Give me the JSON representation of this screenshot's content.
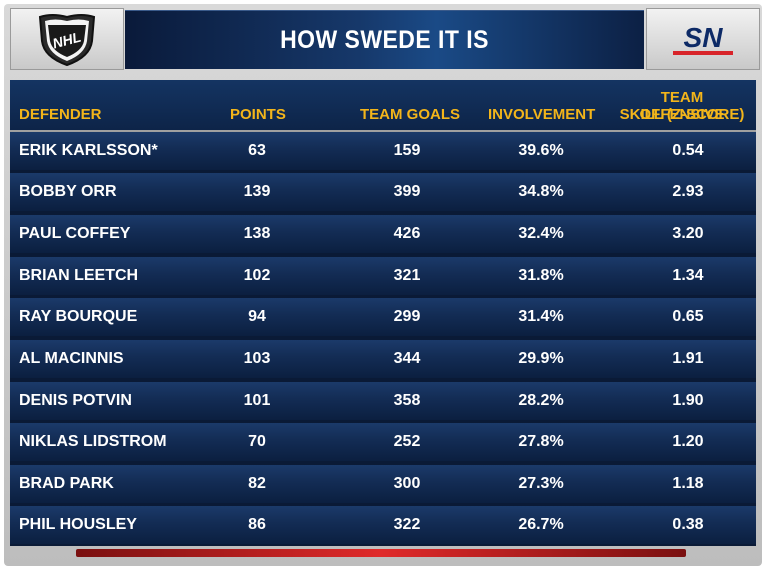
{
  "header": {
    "title": "HOW SWEDE IT IS",
    "left_logo_text": "NHL",
    "right_logo_text": "SN"
  },
  "table": {
    "columns": [
      "DEFENDER",
      "POINTS",
      "TEAM GOALS",
      "INVOLVEMENT",
      "TEAM OFFENSIVE",
      "SKILL (Z-SCORE)"
    ],
    "rows": [
      {
        "defender": "ERIK KARLSSON*",
        "points": "63",
        "team_goals": "159",
        "involvement": "39.6%",
        "skill": "0.54"
      },
      {
        "defender": "BOBBY ORR",
        "points": "139",
        "team_goals": "399",
        "involvement": "34.8%",
        "skill": "2.93"
      },
      {
        "defender": "PAUL COFFEY",
        "points": "138",
        "team_goals": "426",
        "involvement": "32.4%",
        "skill": "3.20"
      },
      {
        "defender": "BRIAN LEETCH",
        "points": "102",
        "team_goals": "321",
        "involvement": "31.8%",
        "skill": "1.34"
      },
      {
        "defender": "RAY BOURQUE",
        "points": "94",
        "team_goals": "299",
        "involvement": "31.4%",
        "skill": "0.65"
      },
      {
        "defender": "AL MACINNIS",
        "points": "103",
        "team_goals": "344",
        "involvement": "29.9%",
        "skill": "1.91"
      },
      {
        "defender": "DENIS POTVIN",
        "points": "101",
        "team_goals": "358",
        "involvement": "28.2%",
        "skill": "1.90"
      },
      {
        "defender": "NIKLAS LIDSTROM",
        "points": "70",
        "team_goals": "252",
        "involvement": "27.8%",
        "skill": "1.20"
      },
      {
        "defender": "BRAD PARK",
        "points": "82",
        "team_goals": "300",
        "involvement": "27.3%",
        "skill": "1.18"
      },
      {
        "defender": "PHIL HOUSLEY",
        "points": "86",
        "team_goals": "322",
        "involvement": "26.7%",
        "skill": "0.38"
      }
    ]
  },
  "colors": {
    "header_text": "#f3b51a",
    "row_text": "#ffffff",
    "title_bar": "#16386a",
    "accent_red": "#e02a2a"
  }
}
